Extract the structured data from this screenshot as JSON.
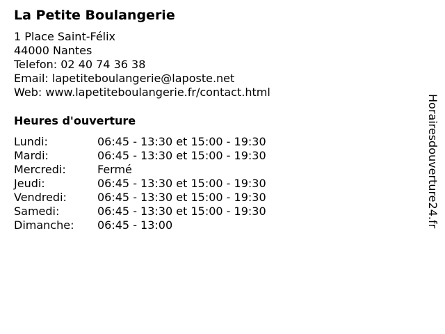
{
  "title": "La Petite Boulangerie",
  "contact": {
    "address_line1": "1 Place Saint-Félix",
    "address_line2": "44000 Nantes",
    "phone": "Telefon: 02 40 74 36 38",
    "email": "Email: lapetiteboulangerie@laposte.net",
    "web": "Web: www.lapetiteboulangerie.fr/contact.html"
  },
  "hours_heading": "Heures d'ouverture",
  "hours": [
    {
      "day": "Lundi:",
      "time": "06:45 - 13:30 et 15:00 - 19:30"
    },
    {
      "day": "Mardi:",
      "time": "06:45 - 13:30 et 15:00 - 19:30"
    },
    {
      "day": "Mercredi:",
      "time": "Fermé"
    },
    {
      "day": "Jeudi:",
      "time": "06:45 - 13:30 et 15:00 - 19:30"
    },
    {
      "day": "Vendredi:",
      "time": "06:45 - 13:30 et 15:00 - 19:30"
    },
    {
      "day": "Samedi:",
      "time": "06:45 - 13:30 et 15:00 - 19:30"
    },
    {
      "day": "Dimanche:",
      "time": "06:45 - 13:00"
    }
  ],
  "watermark": "Horairesdouverture24.fr"
}
